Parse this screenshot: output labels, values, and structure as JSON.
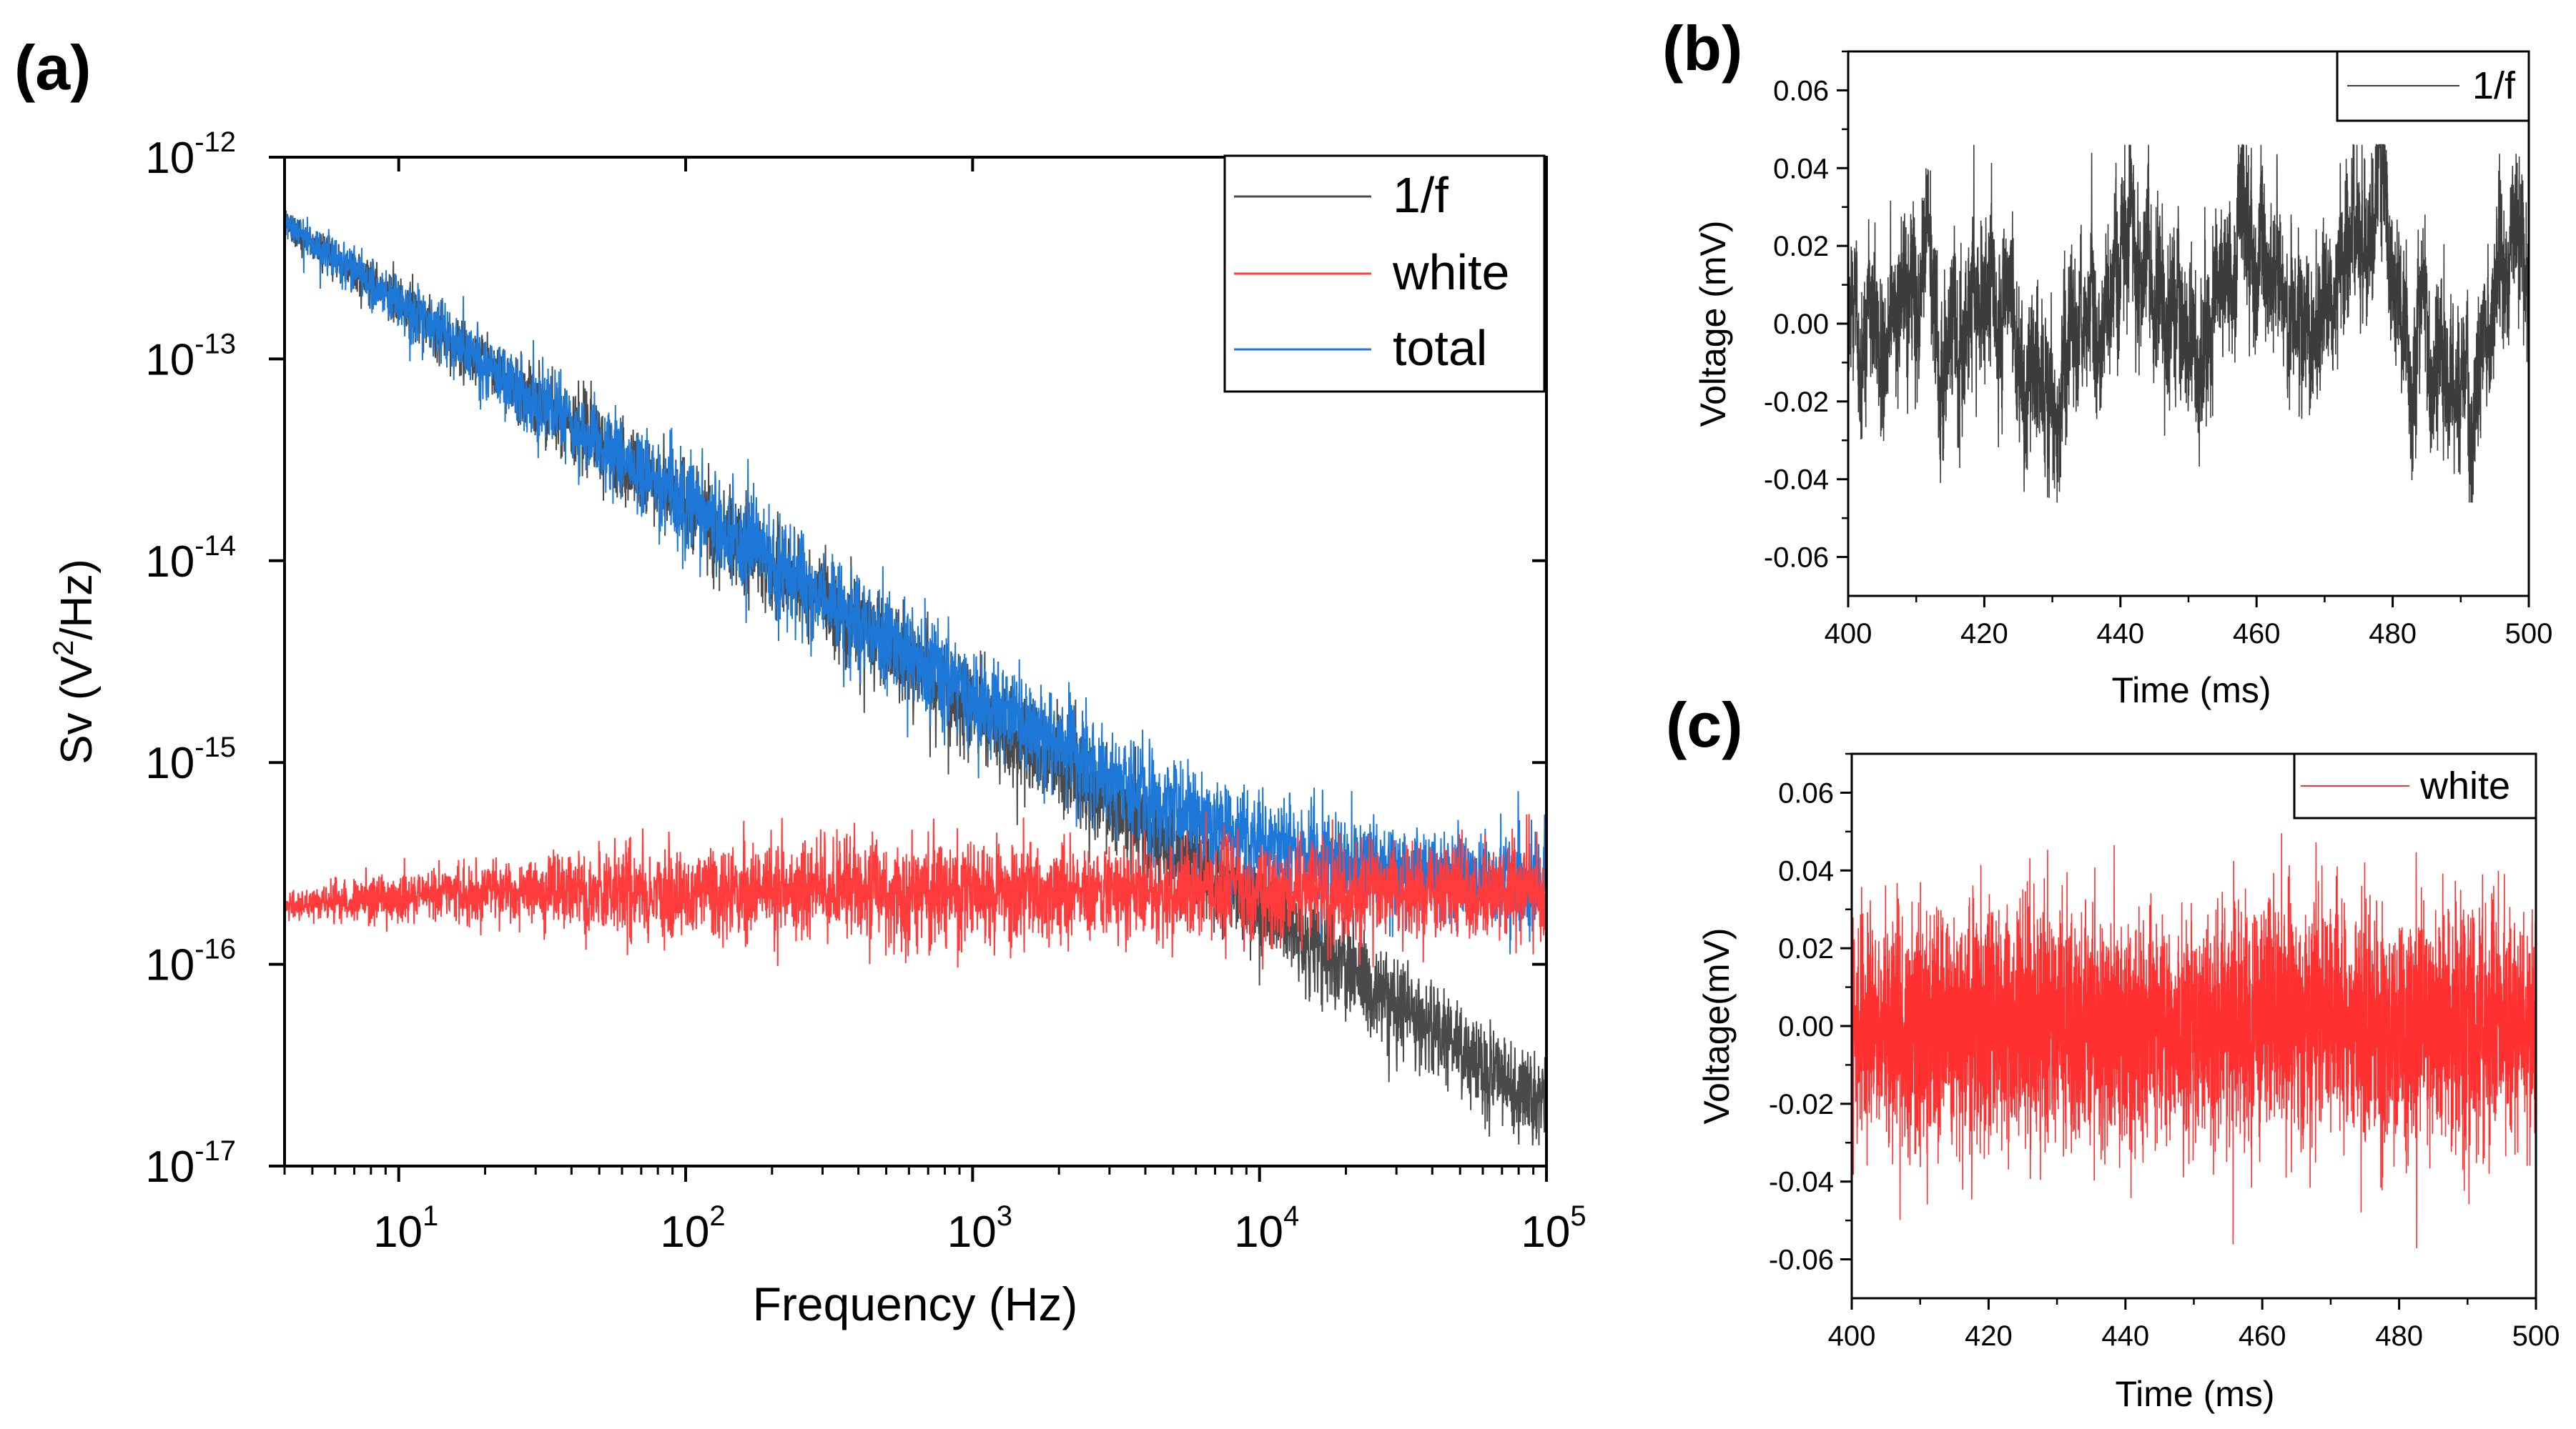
{
  "chart_data": [
    {
      "id": "a",
      "panel_label": "(a)",
      "type": "line",
      "xscale": "log",
      "yscale": "log",
      "xlim": [
        4,
        100000
      ],
      "ylim": [
        1e-17,
        1e-12
      ],
      "xlabel": "Frequency (Hz)",
      "ylabel": {
        "base": "Sv (V",
        "sup": "2",
        "rest": "/Hz)"
      },
      "x_ticks": [
        {
          "base": "10",
          "exp": "1"
        },
        {
          "base": "10",
          "exp": "2"
        },
        {
          "base": "10",
          "exp": "3"
        },
        {
          "base": "10",
          "exp": "4"
        },
        {
          "base": "10",
          "exp": "5"
        }
      ],
      "x_tick_values": [
        10,
        100,
        1000,
        10000,
        100000
      ],
      "y_ticks": [
        {
          "base": "10",
          "exp": "-12"
        },
        {
          "base": "10",
          "exp": "-13"
        },
        {
          "base": "10",
          "exp": "-14"
        },
        {
          "base": "10",
          "exp": "-15"
        },
        {
          "base": "10",
          "exp": "-16"
        },
        {
          "base": "10",
          "exp": "-17"
        }
      ],
      "y_tick_values": [
        1e-12,
        1e-13,
        1e-14,
        1e-15,
        1e-16,
        1e-17
      ],
      "legend_position": "top-right",
      "series": [
        {
          "name": "1/f",
          "color": "#4a4a4a",
          "model": "flicker",
          "A": 1.9e-12,
          "slope": 1.0,
          "spread_dec": 0.12,
          "x_range": [
            4,
            100000
          ]
        },
        {
          "name": "white",
          "color": "#ff3b3b",
          "model": "white",
          "level": 2.3e-16,
          "spread_dec": 0.12,
          "x_range": [
            4,
            100000
          ]
        },
        {
          "name": "total",
          "color": "#1e78d8",
          "model": "sum",
          "spread_dec": 0.12,
          "x_range": [
            4,
            100000
          ]
        }
      ],
      "sample_points": [
        {
          "series": "1/f",
          "x": 10,
          "y": 1.9e-13
        },
        {
          "series": "1/f",
          "x": 100,
          "y": 1.9e-14
        },
        {
          "series": "1/f",
          "x": 1000,
          "y": 1.9e-15
        },
        {
          "series": "1/f",
          "x": 10000,
          "y": 1.9e-16
        },
        {
          "series": "1/f",
          "x": 100000,
          "y": 1.9e-17
        },
        {
          "series": "white",
          "x": 10,
          "y": 2.3e-16
        },
        {
          "series": "white",
          "x": 1000,
          "y": 2.3e-16
        },
        {
          "series": "white",
          "x": 100000,
          "y": 2.3e-16
        },
        {
          "series": "total",
          "x": 10,
          "y": 1.9e-13
        },
        {
          "series": "total",
          "x": 1000,
          "y": 2.1e-15
        },
        {
          "series": "total",
          "x": 100000,
          "y": 2.5e-16
        }
      ]
    },
    {
      "id": "b",
      "panel_label": "(b)",
      "type": "line",
      "xlim": [
        400,
        500
      ],
      "ylim": [
        -0.07,
        0.07
      ],
      "xlabel": "Time (ms)",
      "ylabel": "Voltage (mV)",
      "x_ticks": [
        "400",
        "420",
        "440",
        "460",
        "480",
        "500"
      ],
      "x_tick_values": [
        400,
        420,
        440,
        460,
        480,
        500
      ],
      "y_ticks": [
        "0.06",
        "0.04",
        "0.02",
        "0.00",
        "-0.02",
        "-0.04",
        "-0.06"
      ],
      "y_tick_values": [
        0.06,
        0.04,
        0.02,
        0.0,
        -0.02,
        -0.04,
        -0.06
      ],
      "legend_position": "top-right",
      "series": [
        {
          "name": "1/f",
          "color": "#3c3c3c",
          "model": "pink",
          "x_range": [
            400,
            500
          ],
          "y_range_observed": [
            -0.046,
            0.046
          ]
        }
      ]
    },
    {
      "id": "c",
      "panel_label": "(c)",
      "type": "line",
      "xlim": [
        400,
        500
      ],
      "ylim": [
        -0.07,
        0.07
      ],
      "xlabel": "Time (ms)",
      "ylabel": "Voltage(mV)",
      "x_ticks": [
        "400",
        "420",
        "440",
        "460",
        "480",
        "500"
      ],
      "x_tick_values": [
        400,
        420,
        440,
        460,
        480,
        500
      ],
      "y_ticks": [
        "0.06",
        "0.04",
        "0.02",
        "0.00",
        "-0.02",
        "-0.04",
        "-0.06"
      ],
      "y_tick_values": [
        0.06,
        0.04,
        0.02,
        0.0,
        -0.02,
        -0.04,
        -0.06
      ],
      "legend_position": "top-right",
      "series": [
        {
          "name": "white",
          "color": "#ff3030",
          "model": "white",
          "x_range": [
            400,
            500
          ],
          "y_range_observed": [
            -0.062,
            0.055
          ]
        }
      ]
    }
  ]
}
